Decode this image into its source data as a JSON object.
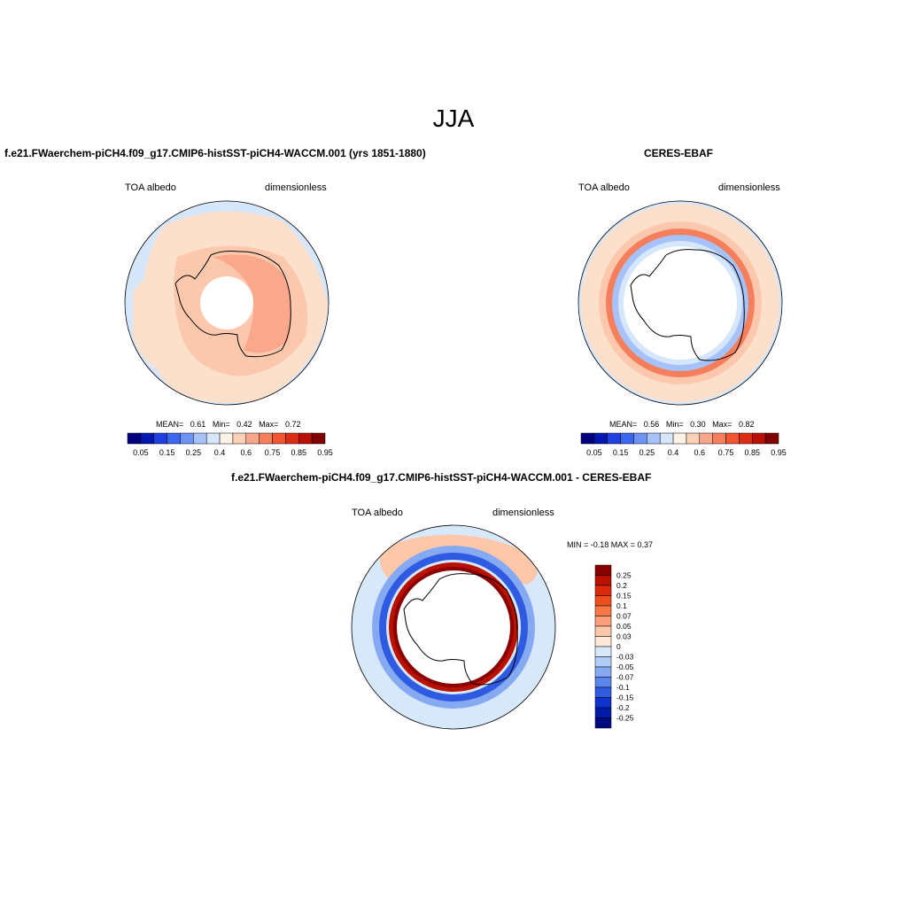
{
  "title": "JJA",
  "panels": [
    {
      "title": "f.e21.FWaerchem-piCH4.f09_g17.CMIP6-histSST-piCH4-WACCM.001 (yrs 1851-1880)",
      "left_label": "TOA albedo",
      "right_label": "dimensionless",
      "stats": {
        "mean_label": "MEAN=",
        "mean": "0.61",
        "min_label": "Min=",
        "min": "0.42",
        "max_label": "Max=",
        "max": "0.72"
      }
    },
    {
      "title": "CERES-EBAF",
      "left_label": "TOA albedo",
      "right_label": "dimensionless",
      "stats": {
        "mean_label": "MEAN=",
        "mean": "0.56",
        "min_label": "Min=",
        "min": "0.30",
        "max_label": "Max=",
        "max": "0.82"
      }
    },
    {
      "title": "f.e21.FWaerchem-piCH4.f09_g17.CMIP6-histSST-piCH4-WACCM.001 - CERES-EBAF",
      "left_label": "TOA albedo",
      "right_label": "dimensionless",
      "stats_text": "MIN = -0.18 MAX = 0.37"
    }
  ],
  "colorbar_abs": {
    "tick_labels": [
      "0.05",
      "0.15",
      "0.25",
      "0.4",
      "0.6",
      "0.75",
      "0.85",
      "0.95"
    ],
    "colors": [
      "#00007f",
      "#0018b0",
      "#1f3fe0",
      "#3a67f0",
      "#6f93f5",
      "#a6c2f8",
      "#d6e7fb",
      "#fff3e8",
      "#fcd1b6",
      "#f9a88b",
      "#f57f5c",
      "#ee5530",
      "#dc2c14",
      "#b90f05",
      "#830000"
    ]
  },
  "colorbar_diff": {
    "tick_labels": [
      "0.25",
      "0.2",
      "0.15",
      "0.1",
      "0.07",
      "0.05",
      "0.03",
      "0",
      "-0.03",
      "-0.05",
      "-0.07",
      "-0.1",
      "-0.15",
      "-0.2",
      "-0.25"
    ],
    "colors": [
      "#8a0000",
      "#b91002",
      "#dc2b0c",
      "#f04f1d",
      "#f87747",
      "#fba07a",
      "#fdc7aa",
      "#fee8d8",
      "#d8e8fb",
      "#b2cdf6",
      "#86aaf2",
      "#5a85ec",
      "#2f5be3",
      "#0f33cf",
      "#001ba8",
      "#000a7e"
    ]
  },
  "colors": {
    "ocean_light_blue": "#d6e7fb",
    "pale_salmon": "#fde0cc",
    "salmon": "#fcc8ad",
    "orange_salmon": "#f9a88b",
    "ring_orange": "#f57f5c",
    "ring_blue": "#a6c2f8",
    "diff_red": "#b91002",
    "diff_blue": "#2f5be3"
  }
}
